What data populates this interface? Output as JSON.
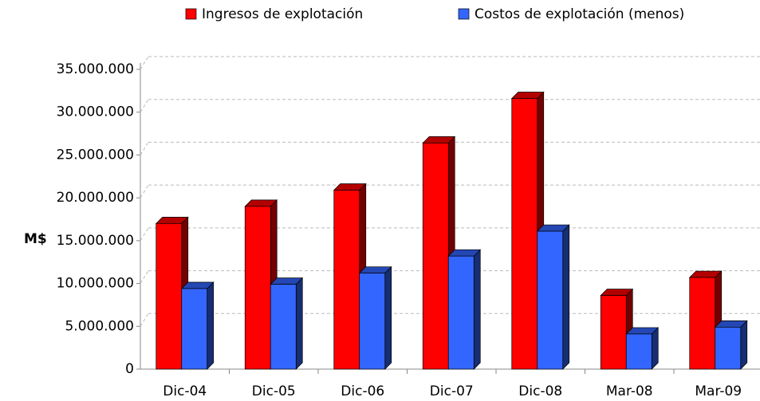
{
  "chart_data": {
    "type": "bar3d",
    "y_label": "M$",
    "categories": [
      "Dic-04",
      "Dic-05",
      "Dic-06",
      "Dic-07",
      "Dic-08",
      "Mar-08",
      "Mar-09"
    ],
    "series": [
      {
        "name": "Ingresos de explotación",
        "color": "#ff0000",
        "values": [
          17000000,
          19000000,
          20900000,
          26400000,
          31600000,
          8600000,
          10700000
        ]
      },
      {
        "name": "Costos de explotación (menos)",
        "color": "#3366ff",
        "values": [
          9400000,
          9900000,
          11200000,
          13200000,
          16100000,
          4100000,
          4900000
        ]
      }
    ],
    "ylim": [
      0,
      35000000
    ],
    "yticks": [
      0,
      {
        "value": 5000000,
        "label": "5.000.000"
      },
      {
        "value": 10000000,
        "label": "10.000.000"
      },
      {
        "value": 15000000,
        "label": "15.000.000"
      },
      {
        "value": 20000000,
        "label": "20.000.000"
      },
      {
        "value": 25000000,
        "label": "25.000.000"
      },
      {
        "value": 30000000,
        "label": "30.000.000"
      },
      {
        "value": 35000000,
        "label": "35.000.000"
      }
    ],
    "grid": true
  }
}
